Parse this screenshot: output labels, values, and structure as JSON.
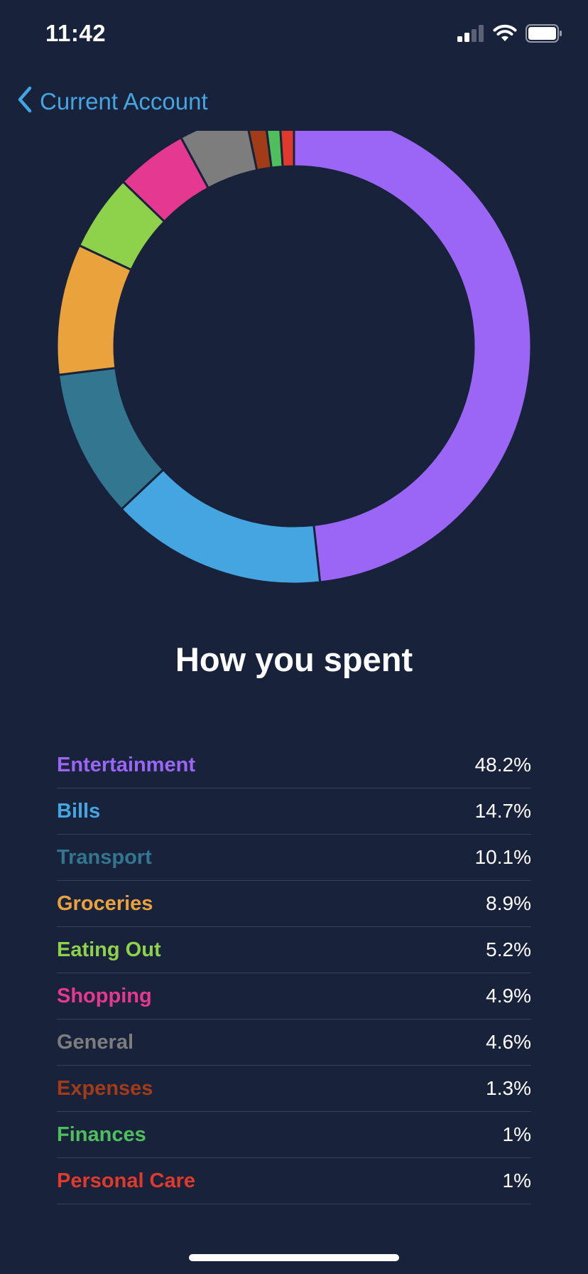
{
  "status_bar": {
    "time": "11:42",
    "icons": [
      "cellular-signal-icon",
      "wifi-icon",
      "battery-icon"
    ]
  },
  "nav": {
    "back_label": "Current Account",
    "back_icon": "chevron-left-icon"
  },
  "section_title": "How you spent",
  "categories": [
    {
      "name": "Entertainment",
      "percent": "48.2%",
      "color": "#9b66f5"
    },
    {
      "name": "Bills",
      "percent": "14.7%",
      "color": "#45a5e0"
    },
    {
      "name": "Transport",
      "percent": "10.1%",
      "color": "#33768f"
    },
    {
      "name": "Groceries",
      "percent": "8.9%",
      "color": "#eaa33c"
    },
    {
      "name": "Eating Out",
      "percent": "5.2%",
      "color": "#8ed14b"
    },
    {
      "name": "Shopping",
      "percent": "4.9%",
      "color": "#e53891"
    },
    {
      "name": "General",
      "percent": "4.6%",
      "color": "#7d7d7d"
    },
    {
      "name": "Expenses",
      "percent": "1.3%",
      "color": "#a23b17"
    },
    {
      "name": "Finances",
      "percent": "1%",
      "color": "#4fbf5e"
    },
    {
      "name": "Personal Care",
      "percent": "1%",
      "color": "#e03a2d"
    }
  ],
  "chart_data": {
    "type": "pie",
    "donut": true,
    "categories": [
      "Entertainment",
      "Bills",
      "Transport",
      "Groceries",
      "Eating Out",
      "Shopping",
      "General",
      "Expenses",
      "Finances",
      "Personal Care"
    ],
    "values": [
      48.2,
      14.7,
      10.1,
      8.9,
      5.2,
      4.9,
      4.6,
      1.3,
      1,
      1
    ],
    "colors": [
      "#9b66f5",
      "#45a5e0",
      "#33768f",
      "#eaa33c",
      "#8ed14b",
      "#e53891",
      "#7d7d7d",
      "#a23b17",
      "#4fbf5e",
      "#e03a2d"
    ],
    "title": "",
    "legend": "below"
  }
}
